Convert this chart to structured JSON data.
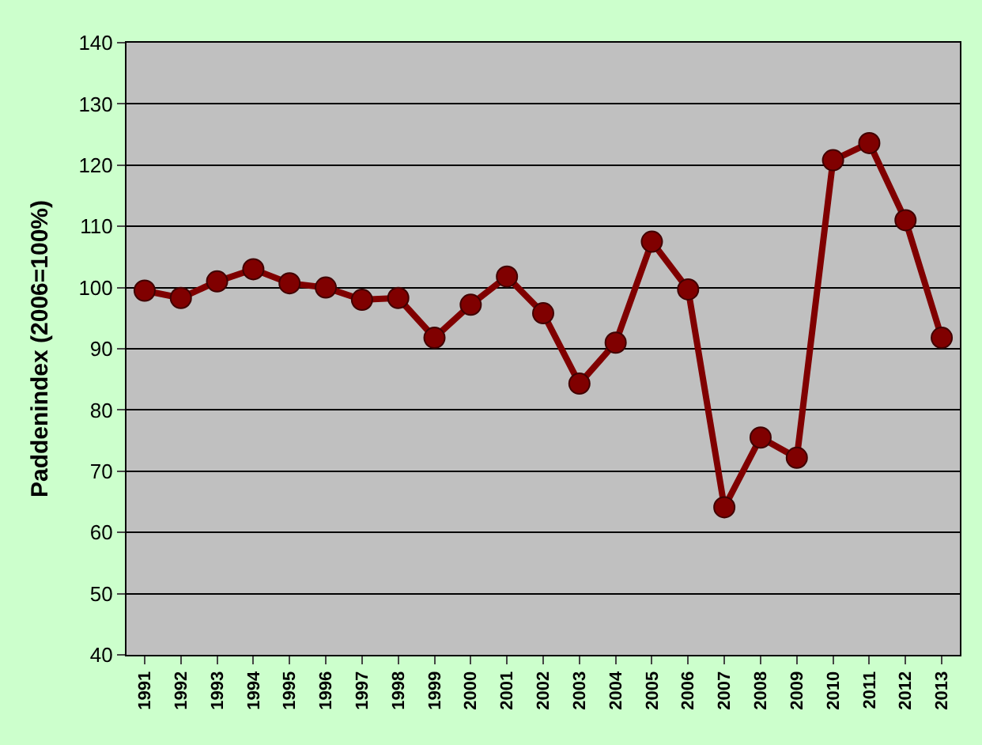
{
  "chart_data": {
    "type": "line",
    "ylabel": "Paddenindex (2006=100%)",
    "categories": [
      "1991",
      "1992",
      "1993",
      "1994",
      "1995",
      "1996",
      "1997",
      "1998",
      "1999",
      "2000",
      "2001",
      "2002",
      "2003",
      "2004",
      "2005",
      "2006",
      "2007",
      "2008",
      "2009",
      "2010",
      "2011",
      "2012",
      "2013"
    ],
    "series": [
      {
        "color": "#800000",
        "values": [
          99.5,
          98.3,
          101,
          103,
          100.7,
          100,
          98,
          98.3,
          91.8,
          97.2,
          101.8,
          95.8,
          84.3,
          91,
          107.5,
          99.7,
          64.1,
          75.5,
          72.2,
          120.8,
          123.6,
          111,
          91.8
        ]
      }
    ],
    "ylim": [
      40,
      140
    ],
    "yticks": [
      40,
      50,
      60,
      70,
      80,
      90,
      100,
      110,
      120,
      130,
      140
    ],
    "grid": "y",
    "marker": "circle",
    "line_style": "solid"
  }
}
